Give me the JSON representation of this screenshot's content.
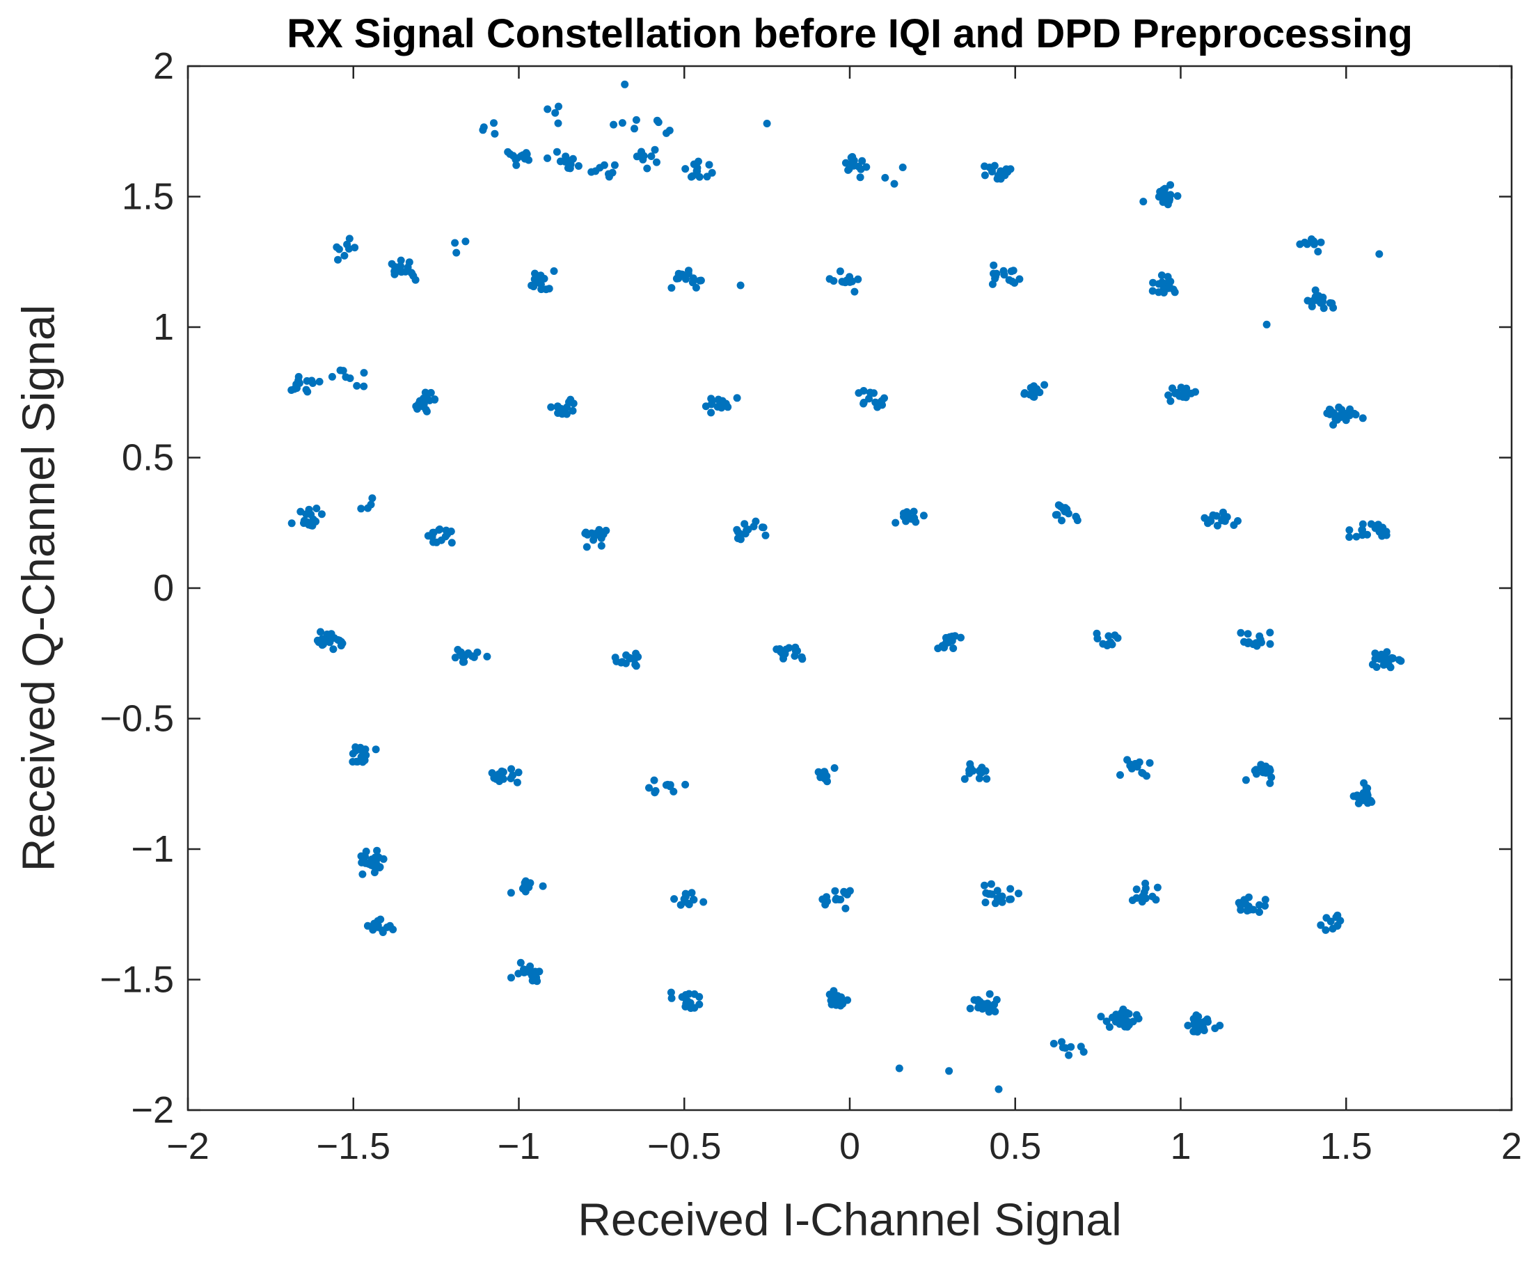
{
  "chart_data": {
    "type": "scatter",
    "title": "RX Signal Constellation before IQI and DPD Preprocessing",
    "xlabel": "Received I-Channel Signal",
    "ylabel": "Received Q-Channel Signal",
    "xlim": [
      -2,
      2
    ],
    "ylim": [
      -2,
      2
    ],
    "grid": false,
    "marker_color": "#0072BD",
    "xticks": [
      -2,
      -1.5,
      -1,
      -0.5,
      0,
      0.5,
      1,
      1.5,
      2
    ],
    "yticks": [
      -2,
      -1.5,
      -1,
      -0.5,
      0,
      0.5,
      1,
      1.5,
      2
    ],
    "xtick_labels": [
      "−2",
      "−1.5",
      "−1",
      "−0.5",
      "0",
      "0.5",
      "1",
      "1.5",
      "2"
    ],
    "ytick_labels": [
      "−2",
      "−1.5",
      "−1",
      "−0.5",
      "0",
      "0.5",
      "1",
      "1.5",
      "2"
    ],
    "clusters": [
      {
        "x": -1.0,
        "y": 1.65,
        "n": 14
      },
      {
        "x": -0.85,
        "y": 1.63,
        "n": 14
      },
      {
        "x": -0.75,
        "y": 1.6,
        "n": 8
      },
      {
        "x": -0.9,
        "y": 1.82,
        "n": 4
      },
      {
        "x": -0.7,
        "y": 1.78,
        "n": 4
      },
      {
        "x": -0.55,
        "y": 1.78,
        "n": 4
      },
      {
        "x": -0.6,
        "y": 1.64,
        "n": 8
      },
      {
        "x": -0.45,
        "y": 1.6,
        "n": 12
      },
      {
        "x": -1.1,
        "y": 1.76,
        "n": 4
      },
      {
        "x": -0.68,
        "y": 1.93,
        "n": 1
      },
      {
        "x": -0.25,
        "y": 1.78,
        "n": 1
      },
      {
        "x": 0.0,
        "y": 1.62,
        "n": 14
      },
      {
        "x": 0.12,
        "y": 1.58,
        "n": 3
      },
      {
        "x": 0.46,
        "y": 1.6,
        "n": 16
      },
      {
        "x": 0.95,
        "y": 1.5,
        "n": 16
      },
      {
        "x": 1.39,
        "y": 1.32,
        "n": 8
      },
      {
        "x": -1.52,
        "y": 1.3,
        "n": 8
      },
      {
        "x": -1.35,
        "y": 1.22,
        "n": 16
      },
      {
        "x": -1.15,
        "y": 1.3,
        "n": 3
      },
      {
        "x": -0.92,
        "y": 1.17,
        "n": 14
      },
      {
        "x": -0.5,
        "y": 1.18,
        "n": 14
      },
      {
        "x": -0.33,
        "y": 1.16,
        "n": 1
      },
      {
        "x": 0.0,
        "y": 1.18,
        "n": 14
      },
      {
        "x": 0.47,
        "y": 1.19,
        "n": 14
      },
      {
        "x": 0.95,
        "y": 1.16,
        "n": 16
      },
      {
        "x": 1.42,
        "y": 1.1,
        "n": 18
      },
      {
        "x": 1.26,
        "y": 1.01,
        "n": 1
      },
      {
        "x": 1.6,
        "y": 1.28,
        "n": 1
      },
      {
        "x": -1.65,
        "y": 0.78,
        "n": 14
      },
      {
        "x": -1.52,
        "y": 0.81,
        "n": 8
      },
      {
        "x": -1.28,
        "y": 0.71,
        "n": 18
      },
      {
        "x": -0.88,
        "y": 0.69,
        "n": 14
      },
      {
        "x": -0.4,
        "y": 0.7,
        "n": 14
      },
      {
        "x": 0.06,
        "y": 0.72,
        "n": 14
      },
      {
        "x": 0.55,
        "y": 0.75,
        "n": 14
      },
      {
        "x": 1.0,
        "y": 0.74,
        "n": 14
      },
      {
        "x": 1.49,
        "y": 0.66,
        "n": 24
      },
      {
        "x": -1.63,
        "y": 0.27,
        "n": 18
      },
      {
        "x": -1.46,
        "y": 0.33,
        "n": 4
      },
      {
        "x": -1.24,
        "y": 0.2,
        "n": 14
      },
      {
        "x": -0.77,
        "y": 0.2,
        "n": 14
      },
      {
        "x": -0.31,
        "y": 0.22,
        "n": 14
      },
      {
        "x": 0.17,
        "y": 0.27,
        "n": 14
      },
      {
        "x": 0.66,
        "y": 0.29,
        "n": 14
      },
      {
        "x": 1.13,
        "y": 0.27,
        "n": 14
      },
      {
        "x": 1.57,
        "y": 0.22,
        "n": 18
      },
      {
        "x": -1.57,
        "y": -0.2,
        "n": 20
      },
      {
        "x": -1.15,
        "y": -0.26,
        "n": 14
      },
      {
        "x": -0.66,
        "y": -0.27,
        "n": 14
      },
      {
        "x": -0.18,
        "y": -0.25,
        "n": 14
      },
      {
        "x": 0.3,
        "y": -0.21,
        "n": 14
      },
      {
        "x": 0.78,
        "y": -0.2,
        "n": 10
      },
      {
        "x": 1.23,
        "y": -0.2,
        "n": 14
      },
      {
        "x": 1.62,
        "y": -0.28,
        "n": 22
      },
      {
        "x": -1.47,
        "y": -0.64,
        "n": 16
      },
      {
        "x": -1.05,
        "y": -0.72,
        "n": 16
      },
      {
        "x": -0.56,
        "y": -0.75,
        "n": 10
      },
      {
        "x": -0.08,
        "y": -0.72,
        "n": 12
      },
      {
        "x": 0.39,
        "y": -0.7,
        "n": 14
      },
      {
        "x": 0.86,
        "y": -0.68,
        "n": 12
      },
      {
        "x": 1.24,
        "y": -0.7,
        "n": 14
      },
      {
        "x": 1.55,
        "y": -0.8,
        "n": 20
      },
      {
        "x": -1.43,
        "y": -1.05,
        "n": 26
      },
      {
        "x": -1.43,
        "y": -1.3,
        "n": 14
      },
      {
        "x": -0.97,
        "y": -1.14,
        "n": 12
      },
      {
        "x": -0.49,
        "y": -1.2,
        "n": 12
      },
      {
        "x": -0.03,
        "y": -1.19,
        "n": 14
      },
      {
        "x": 0.46,
        "y": -1.17,
        "n": 18
      },
      {
        "x": 0.89,
        "y": -1.17,
        "n": 12
      },
      {
        "x": 1.22,
        "y": -1.21,
        "n": 18
      },
      {
        "x": 1.45,
        "y": -1.28,
        "n": 10
      },
      {
        "x": -0.98,
        "y": -1.47,
        "n": 14
      },
      {
        "x": -0.48,
        "y": -1.58,
        "n": 18
      },
      {
        "x": -0.04,
        "y": -1.58,
        "n": 16
      },
      {
        "x": 0.4,
        "y": -1.6,
        "n": 24
      },
      {
        "x": 0.66,
        "y": -1.77,
        "n": 8
      },
      {
        "x": 0.82,
        "y": -1.65,
        "n": 26
      },
      {
        "x": 1.05,
        "y": -1.67,
        "n": 24
      },
      {
        "x": 0.15,
        "y": -1.84,
        "n": 1
      },
      {
        "x": 0.3,
        "y": -1.85,
        "n": 1
      },
      {
        "x": 0.45,
        "y": -1.92,
        "n": 1
      }
    ]
  }
}
